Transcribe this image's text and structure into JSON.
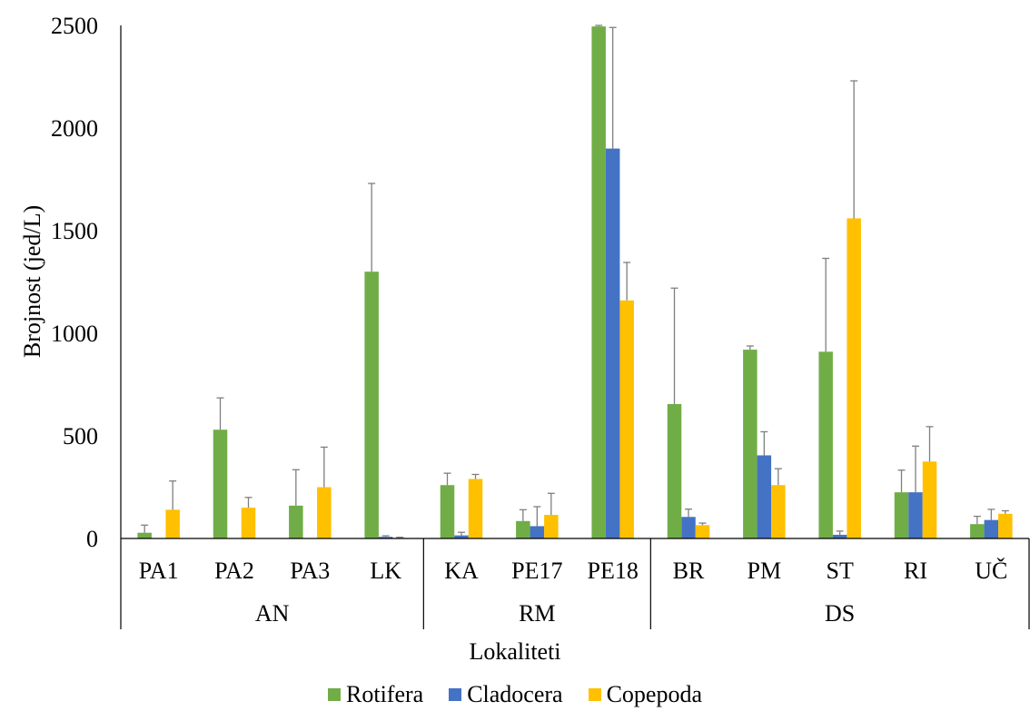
{
  "chart_data": {
    "type": "bar",
    "ylabel": "Brojnost (jed/L)",
    "xlabel": "Lokaliteti",
    "ylim": [
      0,
      2500
    ],
    "yticks": [
      0,
      500,
      1000,
      1500,
      2000,
      2500
    ],
    "grid": false,
    "legend_position": "bottom",
    "categories": [
      "PA1",
      "PA2",
      "PA3",
      "LK",
      "KA",
      "PE17",
      "PE18",
      "BR",
      "PM",
      "ST",
      "RI",
      "UČ"
    ],
    "groups": [
      {
        "label": "AN",
        "categories": [
          "PA1",
          "PA2",
          "PA3",
          "LK"
        ]
      },
      {
        "label": "RM",
        "categories": [
          "KA",
          "PE17",
          "PE18"
        ]
      },
      {
        "label": "DS",
        "categories": [
          "BR",
          "PM",
          "ST",
          "RI",
          "UČ"
        ]
      }
    ],
    "series": [
      {
        "name": "Rotifera",
        "color": "#70AD47",
        "values": [
          28,
          530,
          160,
          1300,
          260,
          85,
          2495,
          655,
          920,
          910,
          225,
          70
        ],
        "errors": [
          37,
          155,
          175,
          430,
          58,
          55,
          5,
          565,
          18,
          455,
          108,
          38
        ]
      },
      {
        "name": "Cladocera",
        "color": "#4472C4",
        "values": [
          0,
          0,
          0,
          8,
          15,
          60,
          1900,
          105,
          405,
          18,
          225,
          90
        ],
        "errors": [
          0,
          0,
          0,
          5,
          15,
          95,
          590,
          38,
          115,
          18,
          225,
          52
        ]
      },
      {
        "name": "Copepoda",
        "color": "#FFC000",
        "values": [
          140,
          150,
          250,
          3,
          290,
          115,
          1160,
          65,
          260,
          1560,
          375,
          120
        ],
        "errors": [
          140,
          50,
          195,
          3,
          22,
          105,
          185,
          10,
          80,
          670,
          170,
          15
        ]
      }
    ]
  }
}
